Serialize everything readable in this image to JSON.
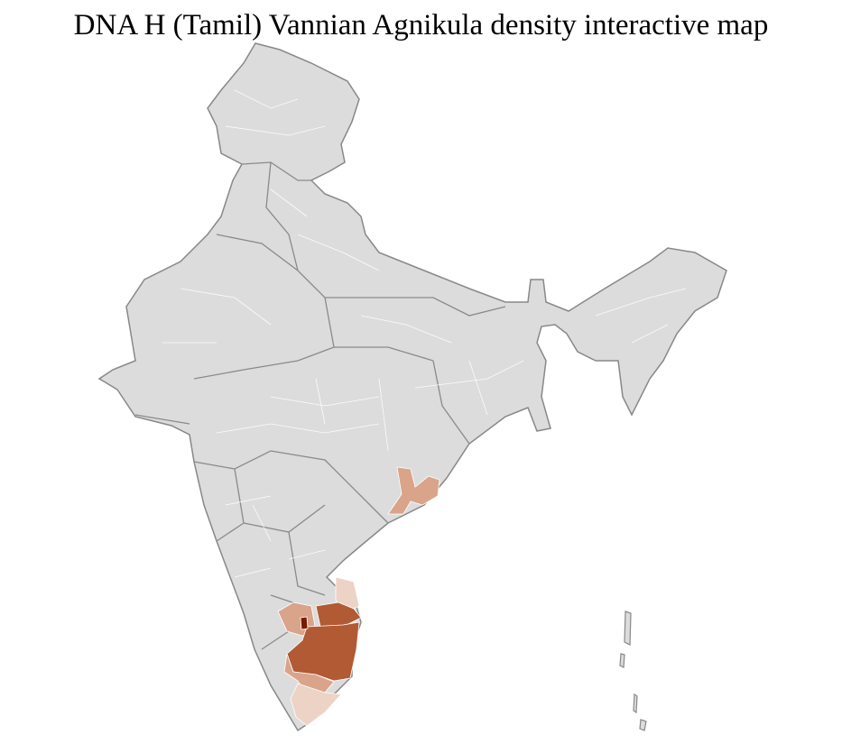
{
  "title": "DNA H (Tamil) Vannian Agnikula density interactive map",
  "map": {
    "type": "choropleth",
    "region": "India districts",
    "colors": {
      "no_data": "#dcdcdc",
      "border": "#888888",
      "district_lines": "#ffffff",
      "level_1": "#ecd3c6",
      "level_2": "#d9a48a",
      "level_3": "#c97c58",
      "level_4": "#b15a34",
      "level_5": "#7a1a00"
    },
    "highlighted_areas": [
      "Tamil Nadu",
      "southern Karnataka",
      "southern Odisha / northern Andhra coast",
      "Kerala (light)"
    ]
  }
}
